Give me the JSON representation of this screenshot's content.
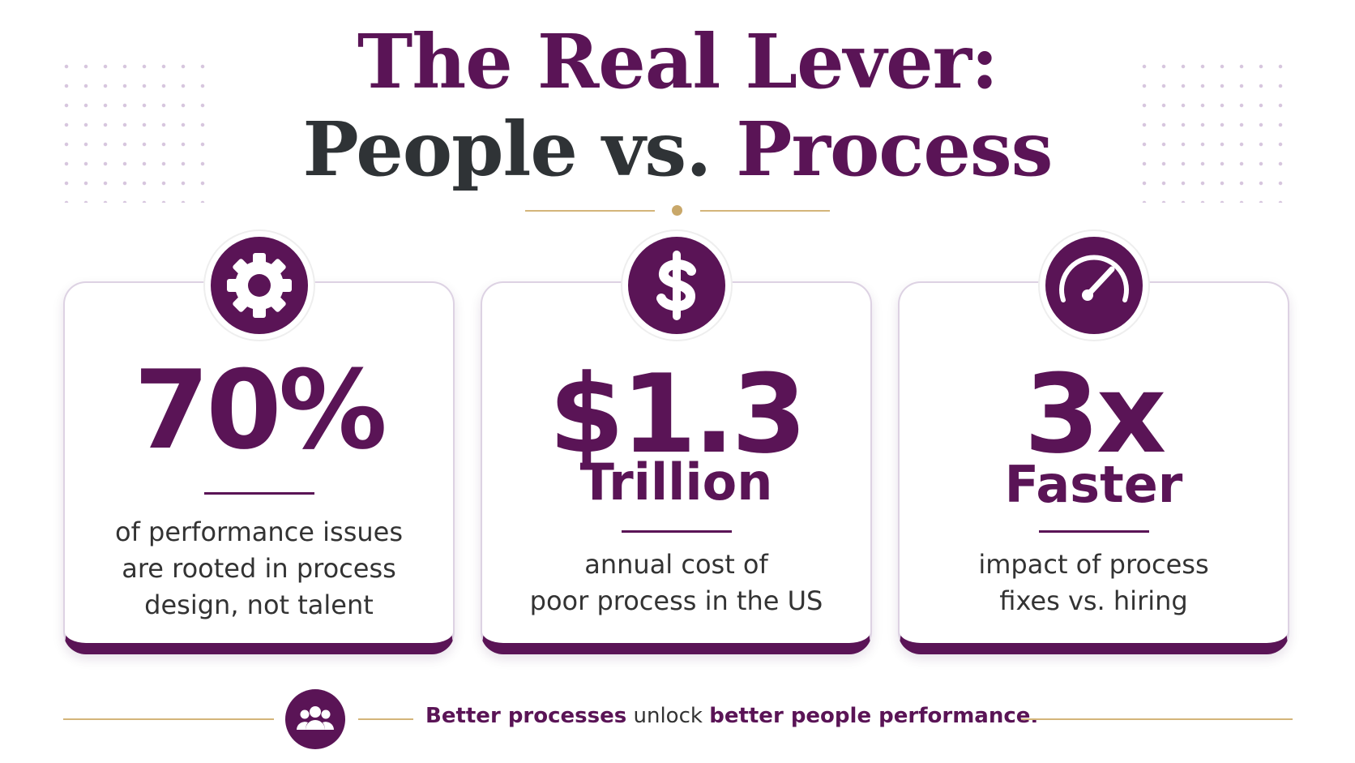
{
  "header": {
    "title_line1": "The Real Lever:",
    "title_line2_a": "People vs.",
    "title_line2_b": "Process"
  },
  "cards": [
    {
      "stat": "70%",
      "description": [
        "of performance issues",
        "are rooted in process",
        "design, not talent"
      ]
    },
    {
      "stat": "$1.3",
      "stat_sub": "Trillion",
      "description": [
        "annual cost of",
        "poor process in the US"
      ]
    },
    {
      "stat": "3x",
      "stat_sub": "Faster",
      "description": [
        "impact of process",
        "fixes vs. hiring"
      ]
    }
  ],
  "footer": {
    "bold_1": "Better processes",
    "middle": "unlock",
    "bold_2": "better people performance."
  }
}
